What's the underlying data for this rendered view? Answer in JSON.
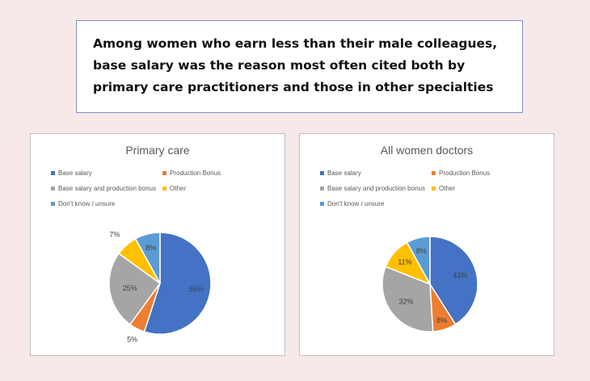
{
  "headline": "Among women who earn less than their male colleagues, base salary was the reason most often cited both by primary care practitioners and those in other specialties",
  "legend_labels": [
    "Base salary",
    "Production Bonus",
    "Base salary and production bonus",
    "Other",
    "Don't know / unsure"
  ],
  "chart_data": [
    {
      "type": "pie",
      "title": "Primary care",
      "categories": [
        "Base salary",
        "Production Bonus",
        "Base salary and production bonus",
        "Other",
        "Don't know / unsure"
      ],
      "values": [
        55,
        5,
        25,
        7,
        8
      ],
      "labels": [
        "55%",
        "5%",
        "25%",
        "7%",
        "8%"
      ],
      "colors": [
        "#4472c4",
        "#ed7d31",
        "#a5a5a5",
        "#ffc000",
        "#5b9bd5"
      ],
      "legend_position": "top"
    },
    {
      "type": "pie",
      "title": "All women doctors",
      "categories": [
        "Base salary",
        "Production Bonus",
        "Base salary and production bonus",
        "Other",
        "Don't know / unsure"
      ],
      "values": [
        41,
        8,
        32,
        11,
        8
      ],
      "labels": [
        "41%",
        "8%",
        "32%",
        "11%",
        "8%"
      ],
      "colors": [
        "#4472c4",
        "#ed7d31",
        "#a5a5a5",
        "#ffc000",
        "#5b9bd5"
      ],
      "legend_position": "top"
    }
  ]
}
